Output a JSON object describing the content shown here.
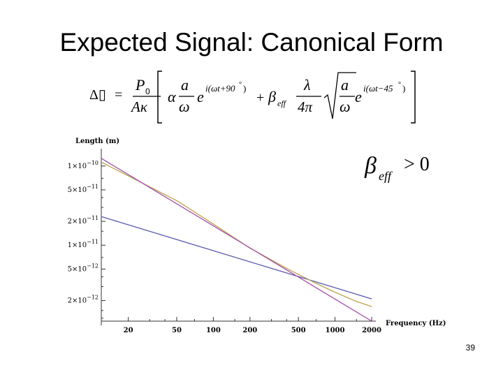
{
  "slide": {
    "title": "Expected Signal: Canonical Form",
    "page_number": "39"
  },
  "formula": {
    "lhs": "Δ▯",
    "P": "P",
    "P_sub": "0",
    "A_kappa": "Aκ",
    "alpha": "α",
    "a": "a",
    "omega": "ω",
    "e": "e",
    "exp1": "i(ωt+90",
    "exp2": "i(ωt−45",
    "deg": "°",
    "close": ")",
    "plus": "+",
    "beta": "β",
    "beta_sub": "eff",
    "lambda": "λ",
    "four_pi": "4π",
    "equals": "="
  },
  "annotation": {
    "beta": "β",
    "sub": "eff",
    "relation": "> 0"
  },
  "chart_data": {
    "type": "line",
    "title": "",
    "xlabel": "Frequency (Hz)",
    "ylabel": "Length (m)",
    "xscale": "log",
    "yscale": "log",
    "xlim": [
      12,
      2000
    ],
    "ylim": [
      1.1e-12,
      1.35e-10
    ],
    "x_ticks": [
      20,
      50,
      100,
      200,
      500,
      1000,
      2000
    ],
    "x_tick_labels": [
      "20",
      "50",
      "100",
      "200",
      "500",
      "1000",
      "2000"
    ],
    "y_ticks": [
      {
        "value": 1e-10,
        "mant": "1",
        "exp": "−10"
      },
      {
        "value": 5e-11,
        "mant": "5",
        "exp": "−11"
      },
      {
        "value": 2e-11,
        "mant": "2",
        "exp": "−11"
      },
      {
        "value": 1e-11,
        "mant": "1",
        "exp": "−11"
      },
      {
        "value": 5e-12,
        "mant": "5",
        "exp": "−12"
      },
      {
        "value": 2e-12,
        "mant": "2",
        "exp": "−12"
      }
    ],
    "y_minor_ticks": [
      1.2e-12,
      1.5e-12,
      3e-12,
      4e-12,
      7e-12,
      1.5e-11,
      3e-11,
      4e-11,
      7e-11
    ],
    "x_minor_ticks": [
      30,
      40,
      70,
      150,
      300,
      400,
      700,
      1500
    ],
    "grid": false,
    "series": [
      {
        "color": "#5a5ab4",
        "x": [
          12,
          2000
        ],
        "y": [
          2.3e-11,
          2.1e-12
        ]
      },
      {
        "color": "#b9a44c",
        "x": [
          12,
          50,
          100,
          200,
          400,
          700,
          1000,
          1500,
          2000
        ],
        "y": [
          1.12e-10,
          3.65e-11,
          1.85e-11,
          9.2e-12,
          5.1e-12,
          3.3e-12,
          2.55e-12,
          1.95e-12,
          1.68e-12
        ]
      },
      {
        "color": "#a64ca6",
        "x": [
          12,
          2000
        ],
        "y": [
          1.25e-10,
          1.1e-12
        ]
      }
    ]
  }
}
